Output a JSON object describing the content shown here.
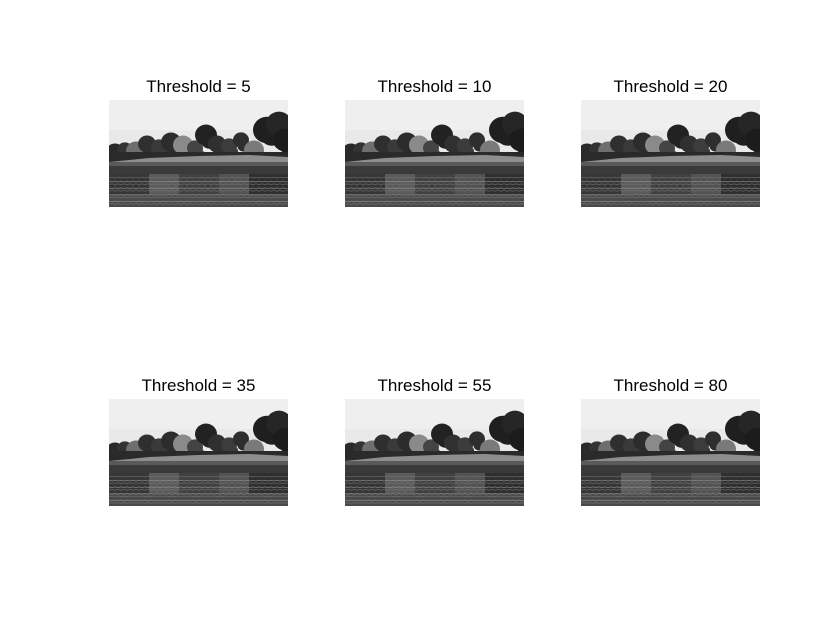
{
  "figure": {
    "panels": [
      {
        "title": "Threshold = 5",
        "threshold": 5
      },
      {
        "title": "Threshold = 10",
        "threshold": 10
      },
      {
        "title": "Threshold = 20",
        "threshold": 20
      },
      {
        "title": "Threshold = 35",
        "threshold": 35
      },
      {
        "title": "Threshold = 55",
        "threshold": 55
      },
      {
        "title": "Threshold = 80",
        "threshold": 80
      }
    ]
  }
}
